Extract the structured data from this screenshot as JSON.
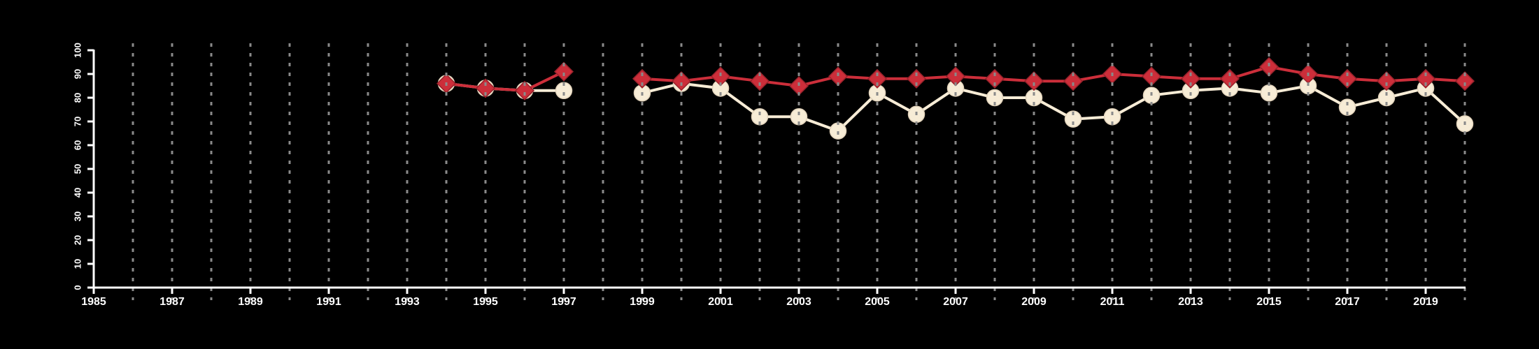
{
  "figure": {
    "background_color": "#000000",
    "text_color": "#ffffff"
  },
  "chart_data": {
    "type": "line",
    "title": "",
    "xlabel": "",
    "ylabel": "",
    "legend": "none",
    "grid": {
      "orientation": "vertical",
      "style": "dashed",
      "color": "#8a8a8a"
    },
    "axis_color": "#ffffff",
    "x_axis": {
      "min": 1985,
      "max": 2020,
      "tick_step_years": 2,
      "tick_labels": [
        "1985",
        "1987",
        "1989",
        "1991",
        "1993",
        "1995",
        "1997",
        "1999",
        "2001",
        "2003",
        "2005",
        "2007",
        "2009",
        "2011",
        "2013",
        "2015",
        "2017",
        "2019"
      ],
      "tick_years": [
        1985,
        1987,
        1989,
        1991,
        1993,
        1995,
        1997,
        1999,
        2001,
        2003,
        2005,
        2007,
        2009,
        2011,
        2013,
        2015,
        2017,
        2019
      ]
    },
    "y_axis": {
      "min": 0,
      "max": 100,
      "tick_labels": [
        "0",
        "10",
        "20",
        "30",
        "40",
        "50",
        "60",
        "70",
        "80",
        "90",
        "100"
      ],
      "tick_values": [
        0,
        10,
        20,
        30,
        40,
        50,
        60,
        70,
        80,
        90,
        100
      ]
    },
    "x": [
      1994,
      1995,
      1996,
      1997,
      1998,
      1999,
      2000,
      2001,
      2002,
      2003,
      2004,
      2005,
      2006,
      2007,
      2008,
      2009,
      2010,
      2011,
      2012,
      2013,
      2014,
      2015,
      2016,
      2017,
      2018,
      2019,
      2020
    ],
    "series": [
      {
        "name": "cream-circle-series",
        "marker": "circle",
        "color": "#f7ecd6",
        "marker_edge_color": "#e3d4bc",
        "values": [
          86,
          84,
          83,
          83,
          null,
          82,
          86,
          84,
          72,
          72,
          66,
          82,
          73,
          84,
          80,
          80,
          71,
          72,
          81,
          83,
          84,
          82,
          85,
          76,
          80,
          84,
          69
        ]
      },
      {
        "name": "red-diamond-series",
        "marker": "diamond",
        "color": "#cc2e3a",
        "marker_edge_color": "#97222b",
        "values": [
          86,
          84,
          83,
          91,
          null,
          88,
          87,
          89,
          87,
          85,
          89,
          88,
          88,
          89,
          88,
          87,
          87,
          90,
          89,
          88,
          88,
          93,
          90,
          88,
          87,
          88,
          87
        ]
      }
    ]
  }
}
